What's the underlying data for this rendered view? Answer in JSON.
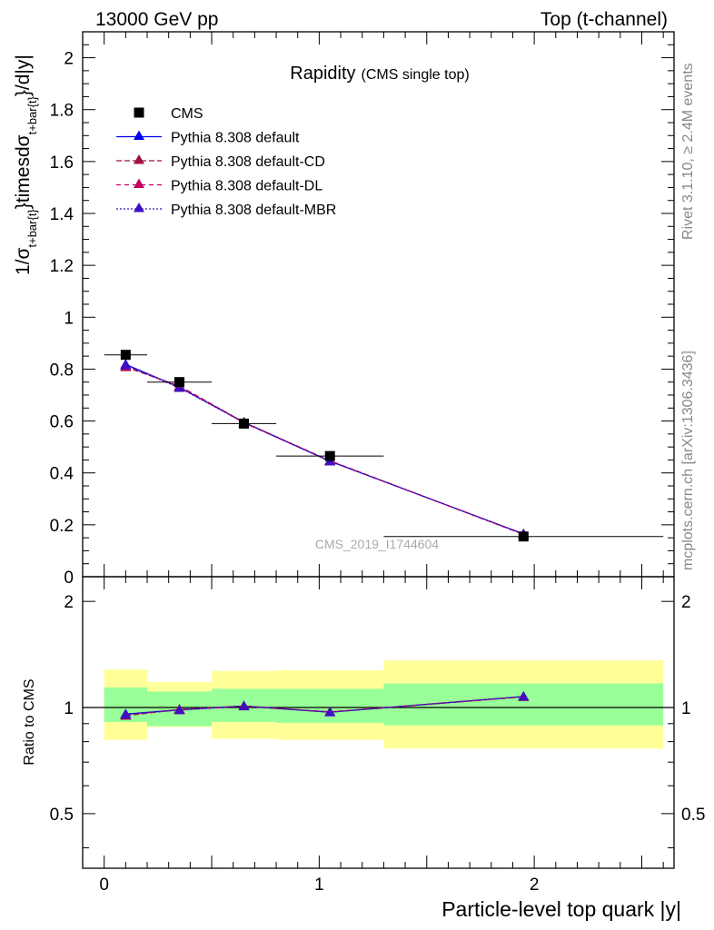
{
  "header": {
    "left": "13000 GeV pp",
    "right": "Top (t-channel)"
  },
  "side": {
    "rivet": "Rivet 3.1.10, ≥ 2.4M events",
    "mcplots": "mcplots.cern.ch [arXiv:1306.3436]"
  },
  "chart_data": [
    {
      "type": "scatter",
      "title": "Rapidity",
      "subtitle": "(CMS single top)",
      "watermark": "CMS_2019_I1744604",
      "ylabel": "1/σ_{t+bar{t}}timesdσ_{t+bar{t}}/d|y|",
      "ylabel_parts": {
        "a": "1/σ",
        "b": "t+bar{t}",
        "c": "}timesdσ",
        "d": "t+bar{t}",
        "e": "}/d|y|"
      },
      "xlim": [
        -0.1,
        2.65
      ],
      "ylim": [
        0,
        2.1
      ],
      "yticks": [
        0,
        0.2,
        0.4,
        0.6,
        0.8,
        1,
        1.2,
        1.4,
        1.6,
        1.8,
        2
      ],
      "ytick_labels": [
        "0",
        "0.2",
        "0.4",
        "0.6",
        "0.8",
        "1",
        "1.2",
        "1.4",
        "1.6",
        "1.8",
        "2"
      ],
      "legend_position": "top-left",
      "data": {
        "name": "CMS",
        "color": "#000000",
        "x": [
          0.1,
          0.35,
          0.65,
          1.05,
          1.95
        ],
        "y": [
          0.855,
          0.75,
          0.59,
          0.465,
          0.155
        ],
        "xerr": [
          0.1,
          0.15,
          0.15,
          0.25,
          0.65
        ]
      },
      "series": [
        {
          "name": "Pythia 8.308 default",
          "color": "#0000ee",
          "dash": "solid",
          "x": [
            0.1,
            0.35,
            0.65,
            1.05,
            1.95
          ],
          "y": [
            0.818,
            0.73,
            0.595,
            0.445,
            0.165
          ]
        },
        {
          "name": "Pythia 8.308 default-CD",
          "color": "#a0103c",
          "dash": "6,3",
          "x": [
            0.1,
            0.35,
            0.65,
            1.05,
            1.95
          ],
          "y": [
            0.808,
            0.735,
            0.595,
            0.447,
            0.163
          ]
        },
        {
          "name": "Pythia 8.308 default-DL",
          "color": "#c00060",
          "dash": "5,4",
          "x": [
            0.1,
            0.35,
            0.65,
            1.05,
            1.95
          ],
          "y": [
            0.812,
            0.733,
            0.593,
            0.446,
            0.164
          ]
        },
        {
          "name": "Pythia 8.308 default-MBR",
          "color": "#4010c0",
          "dash": "2,2",
          "x": [
            0.1,
            0.35,
            0.65,
            1.05,
            1.95
          ],
          "y": [
            0.815,
            0.728,
            0.594,
            0.445,
            0.165
          ]
        }
      ]
    },
    {
      "type": "scatter",
      "ylabel": "Ratio to CMS",
      "xlabel": "Particle-level top quark |y|",
      "xlim": [
        -0.1,
        2.65
      ],
      "ylim": [
        0.35,
        2.35
      ],
      "yticks": [
        0.5,
        1,
        2
      ],
      "ytick_labels": [
        "0.5",
        "1",
        "2"
      ],
      "xticks": [
        0,
        1,
        2
      ],
      "xtick_labels": [
        "0",
        "1",
        "2"
      ],
      "reference_line": 1,
      "bands": [
        {
          "x0": 0.0,
          "x1": 0.2,
          "green": [
            0.91,
            1.14
          ],
          "yellow": [
            0.81,
            1.28
          ]
        },
        {
          "x0": 0.2,
          "x1": 0.5,
          "green": [
            0.885,
            1.11
          ],
          "yellow": [
            0.88,
            1.18
          ]
        },
        {
          "x0": 0.5,
          "x1": 0.8,
          "green": [
            0.91,
            1.13
          ],
          "yellow": [
            0.815,
            1.27
          ]
        },
        {
          "x0": 0.8,
          "x1": 1.3,
          "green": [
            0.905,
            1.13
          ],
          "yellow": [
            0.81,
            1.275
          ]
        },
        {
          "x0": 1.3,
          "x1": 2.6,
          "green": [
            0.89,
            1.17
          ],
          "yellow": [
            0.765,
            1.36
          ]
        }
      ],
      "series": [
        {
          "name": "Pythia 8.308 default",
          "color": "#0000ee",
          "dash": "solid",
          "x": [
            0.1,
            0.35,
            0.65,
            1.05,
            1.95
          ],
          "y": [
            0.958,
            0.985,
            1.01,
            0.97,
            1.075
          ]
        },
        {
          "name": "Pythia 8.308 default-CD",
          "color": "#a0103c",
          "dash": "6,3",
          "x": [
            0.1,
            0.35,
            0.65,
            1.05,
            1.95
          ],
          "y": [
            0.948,
            0.988,
            1.01,
            0.972,
            1.072
          ]
        },
        {
          "name": "Pythia 8.308 default-DL",
          "color": "#c00060",
          "dash": "5,4",
          "x": [
            0.1,
            0.35,
            0.65,
            1.05,
            1.95
          ],
          "y": [
            0.952,
            0.986,
            1.008,
            0.971,
            1.073
          ]
        },
        {
          "name": "Pythia 8.308 default-MBR",
          "color": "#4010c0",
          "dash": "2,2",
          "x": [
            0.1,
            0.35,
            0.65,
            1.05,
            1.95
          ],
          "y": [
            0.955,
            0.983,
            1.009,
            0.97,
            1.074
          ]
        }
      ]
    }
  ]
}
